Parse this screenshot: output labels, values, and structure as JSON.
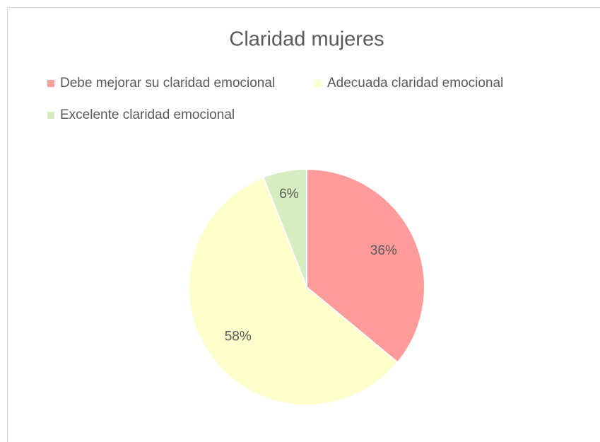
{
  "chart_data": {
    "type": "pie",
    "title": "Claridad mujeres",
    "categories": [
      "Debe mejorar su claridad emocional",
      "Adecuada claridad emocional",
      "Excelente claridad emocional"
    ],
    "values": [
      36,
      58,
      6
    ],
    "value_labels": [
      "36%",
      "58%",
      "6%"
    ],
    "colors": [
      "#ff9b9b",
      "#ffffcc",
      "#d6ecc1"
    ],
    "legend": "top"
  }
}
